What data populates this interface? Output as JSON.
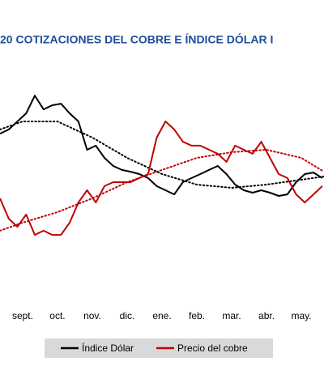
{
  "chart_data": {
    "type": "line",
    "title": "20 COTIZACIONES DEL COBRE E ÍNDICE DÓLAR I",
    "xlim": [
      -0.65,
      8.65
    ],
    "xticks": [
      {
        "value": 0,
        "label": "sept."
      },
      {
        "value": 1,
        "label": "oct."
      },
      {
        "value": 2,
        "label": "nov."
      },
      {
        "value": 3,
        "label": "dic."
      },
      {
        "value": 4,
        "label": "ene."
      },
      {
        "value": 5,
        "label": "feb."
      },
      {
        "value": 6,
        "label": "mar."
      },
      {
        "value": 7,
        "label": "abr."
      },
      {
        "value": 8,
        "label": "may."
      }
    ],
    "ylim": [
      0,
      100
    ],
    "x": [
      -0.65,
      -0.4,
      -0.15,
      0.1,
      0.35,
      0.6,
      0.85,
      1.1,
      1.35,
      1.6,
      1.85,
      2.1,
      2.35,
      2.6,
      2.85,
      3.1,
      3.35,
      3.6,
      3.85,
      4.1,
      4.35,
      4.6,
      4.85,
      5.1,
      5.35,
      5.6,
      5.85,
      6.1,
      6.35,
      6.6,
      6.85,
      7.1,
      7.35,
      7.6,
      7.85,
      8.1,
      8.35,
      8.6
    ],
    "trend_x": [
      -0.65,
      0,
      1,
      2,
      3,
      4,
      5,
      6,
      7,
      8,
      8.65
    ],
    "series": [
      {
        "name": "Índice Dólar",
        "color": "#000000",
        "values": [
          75.9,
          77.8,
          81.5,
          85.2,
          93.3,
          87,
          88.9,
          89.6,
          85.2,
          81.5,
          68.5,
          70.4,
          64.8,
          61.1,
          59.3,
          58.5,
          57.4,
          55.6,
          51.9,
          50,
          48.1,
          53.7,
          55.6,
          57.4,
          59.3,
          61.1,
          57.4,
          52.6,
          50,
          48.9,
          50,
          48.9,
          47.4,
          48.1,
          53.7,
          57.4,
          58.1,
          55.6
        ],
        "trend": [
          77.8,
          81.5,
          81.5,
          74.1,
          64.8,
          57.4,
          52.6,
          51.1,
          52.6,
          54.8,
          56.3
        ]
      },
      {
        "name": "Precio del cobre",
        "color": "#c00000",
        "values": [
          46.3,
          37,
          33.3,
          38.9,
          29.6,
          31.5,
          29.6,
          29.6,
          35.2,
          44.4,
          50,
          44.4,
          51.9,
          53.7,
          53.7,
          53.7,
          55.6,
          57.4,
          74.1,
          81.5,
          77.8,
          72.2,
          70.4,
          70.4,
          68.5,
          66.7,
          63,
          70.4,
          68.5,
          66.7,
          72.2,
          64.8,
          57.4,
          55.6,
          48.1,
          44.4,
          48.1,
          51.9
        ],
        "trend": [
          31.5,
          35.2,
          40,
          46.3,
          53.7,
          59.3,
          64.8,
          67.4,
          68.5,
          64.8,
          58.5
        ]
      }
    ]
  }
}
